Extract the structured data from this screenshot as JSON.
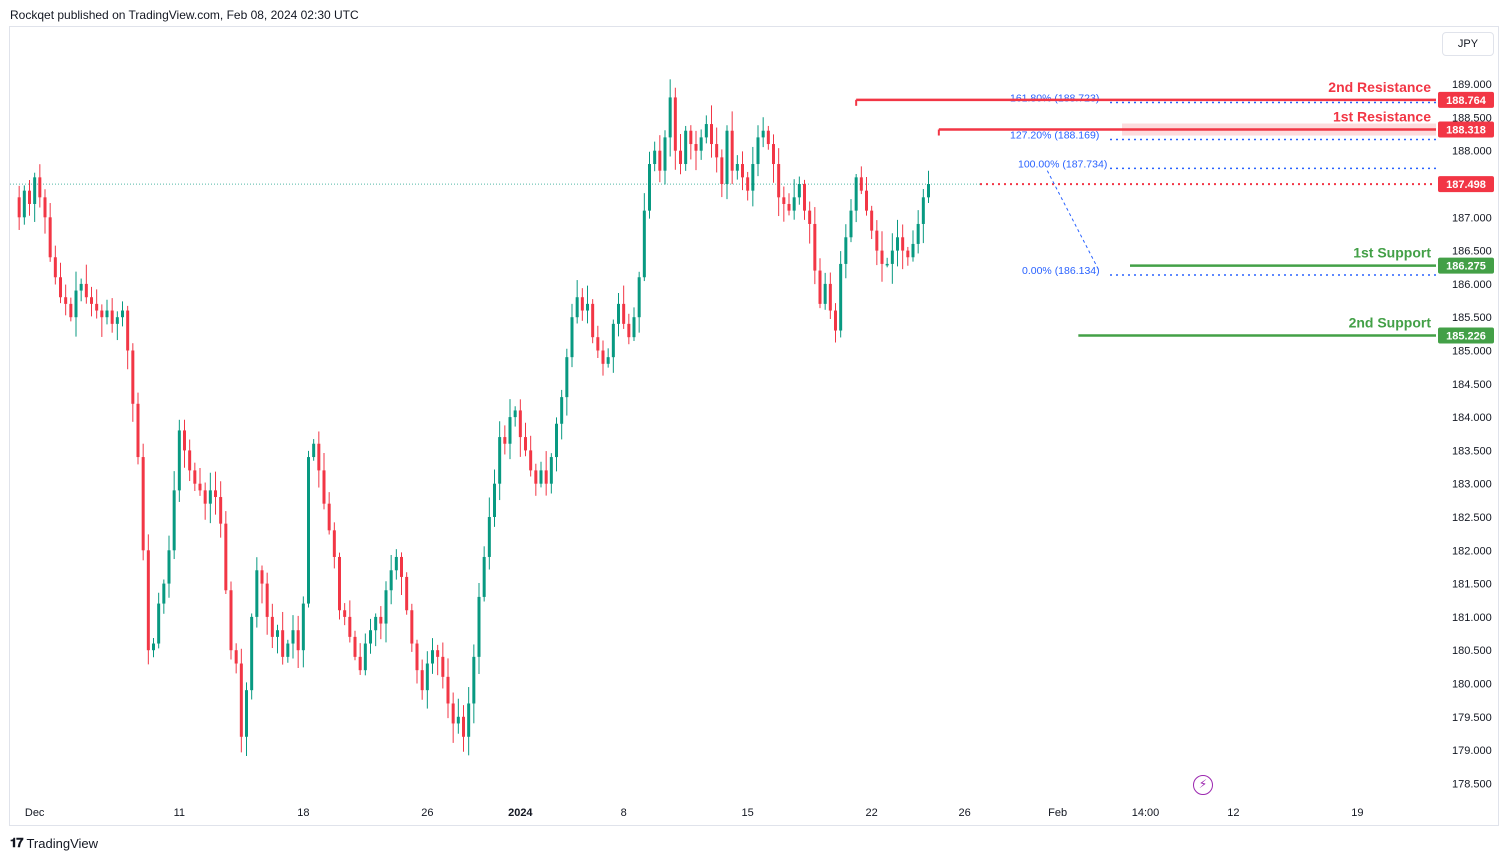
{
  "attribution": "Rockqet published on TradingView.com, Feb 08, 2024 02:30 UTC",
  "currency_button": "JPY",
  "brand": "TradingView",
  "brand_icon": "tradingview-logo-icon",
  "bolt_icon": "lightning-icon",
  "colors": {
    "up": "#089981",
    "down": "#f23645",
    "resistance": "#f23645",
    "support": "#43a047",
    "fib": "#2962ff",
    "current": "#f23645"
  },
  "chart_data": {
    "type": "candlestick",
    "y_axis": {
      "range": [
        178.2,
        189.3
      ],
      "ticks": [
        "189.000",
        "188.500",
        "188.000",
        "187.000",
        "186.500",
        "186.000",
        "185.500",
        "185.000",
        "184.500",
        "184.000",
        "183.500",
        "183.000",
        "182.500",
        "182.000",
        "181.500",
        "181.000",
        "180.500",
        "180.000",
        "179.500",
        "179.000",
        "178.500"
      ]
    },
    "x_axis": {
      "ticks": [
        {
          "label": "Dec",
          "i": 4
        },
        {
          "label": "11",
          "i": 32
        },
        {
          "label": "18",
          "i": 56
        },
        {
          "label": "26",
          "i": 80
        },
        {
          "label": "2024",
          "i": 98
        },
        {
          "label": "8",
          "i": 118
        },
        {
          "label": "15",
          "i": 142
        },
        {
          "label": "22",
          "i": 166
        },
        {
          "label": "26",
          "i": 184
        },
        {
          "label": "Feb",
          "i": 202
        },
        {
          "label": "14:00",
          "i": 219
        },
        {
          "label": "12",
          "i": 236
        },
        {
          "label": "19",
          "i": 260
        }
      ],
      "total_slots": 276
    },
    "levels": [
      {
        "name": "2nd Resistance",
        "value": 188.764,
        "label": "188.764",
        "kind": "resistance",
        "start_i": 163
      },
      {
        "name": "1st Resistance",
        "value": 188.318,
        "label": "188.318",
        "kind": "resistance",
        "start_i": 179
      },
      {
        "name": "1st Support",
        "value": 186.275,
        "label": "186.275",
        "kind": "support",
        "start_i": 216
      },
      {
        "name": "2nd Support",
        "value": 185.226,
        "label": "185.226",
        "kind": "support",
        "start_i": 206
      }
    ],
    "fib_levels": [
      {
        "text": "161.80% (188.723)",
        "value": 188.723
      },
      {
        "text": "127.20% (188.169)",
        "value": 188.169
      },
      {
        "text": "100.00% (187.734)",
        "value": 187.734
      },
      {
        "text": "0.00% (186.134)",
        "value": 186.134
      }
    ],
    "current_price": {
      "value": 187.498,
      "label": "187.498"
    },
    "ohlc_path": [
      187.3,
      187.0,
      187.4,
      187.2,
      187.6,
      187.3,
      187.0,
      186.4,
      186.1,
      185.8,
      185.7,
      185.5,
      185.9,
      186.0,
      185.8,
      185.7,
      185.6,
      185.5,
      185.6,
      185.4,
      185.5,
      185.6,
      185.0,
      184.2,
      183.4,
      182.0,
      180.5,
      180.6,
      181.2,
      181.5,
      182.0,
      182.9,
      183.8,
      183.5,
      183.2,
      183.0,
      182.9,
      182.7,
      182.9,
      182.8,
      182.4,
      181.4,
      180.5,
      180.3,
      179.2,
      179.9,
      181.0,
      181.7,
      181.5,
      181.0,
      180.7,
      180.8,
      180.4,
      180.6,
      180.8,
      180.5,
      181.2,
      183.4,
      183.6,
      183.2,
      182.7,
      182.3,
      181.9,
      181.1,
      181.0,
      180.7,
      180.4,
      180.2,
      180.6,
      180.8,
      181.0,
      180.9,
      181.4,
      181.7,
      181.9,
      181.6,
      181.1,
      180.6,
      180.2,
      179.9,
      180.3,
      180.5,
      180.4,
      180.1,
      179.7,
      179.4,
      179.5,
      179.2,
      179.7,
      180.4,
      181.3,
      181.9,
      182.5,
      183.0,
      183.7,
      183.6,
      184.0,
      184.1,
      183.7,
      183.5,
      183.2,
      183.0,
      183.2,
      183.0,
      183.4,
      183.9,
      184.3,
      184.9,
      185.5,
      185.8,
      185.6,
      185.7,
      185.2,
      185.0,
      184.8,
      184.9,
      185.4,
      185.7,
      185.4,
      185.2,
      185.5,
      186.1,
      187.1,
      187.8,
      188.0,
      187.7,
      188.2,
      188.8,
      188.0,
      187.8,
      188.3,
      188.1,
      188.0,
      188.2,
      188.4,
      188.1,
      187.9,
      187.5,
      188.3,
      187.7,
      187.8,
      187.6,
      187.4,
      187.8,
      188.2,
      188.3,
      188.1,
      187.8,
      187.3,
      187.2,
      187.1,
      187.3,
      187.5,
      187.1,
      186.9,
      186.2,
      185.7,
      186.0,
      185.6,
      185.3,
      186.3,
      186.7,
      187.1,
      187.6,
      187.4,
      187.1,
      186.8,
      186.5,
      186.3,
      186.3,
      186.5,
      186.7,
      186.5,
      186.4,
      186.6,
      186.9,
      187.3,
      187.5
    ]
  }
}
